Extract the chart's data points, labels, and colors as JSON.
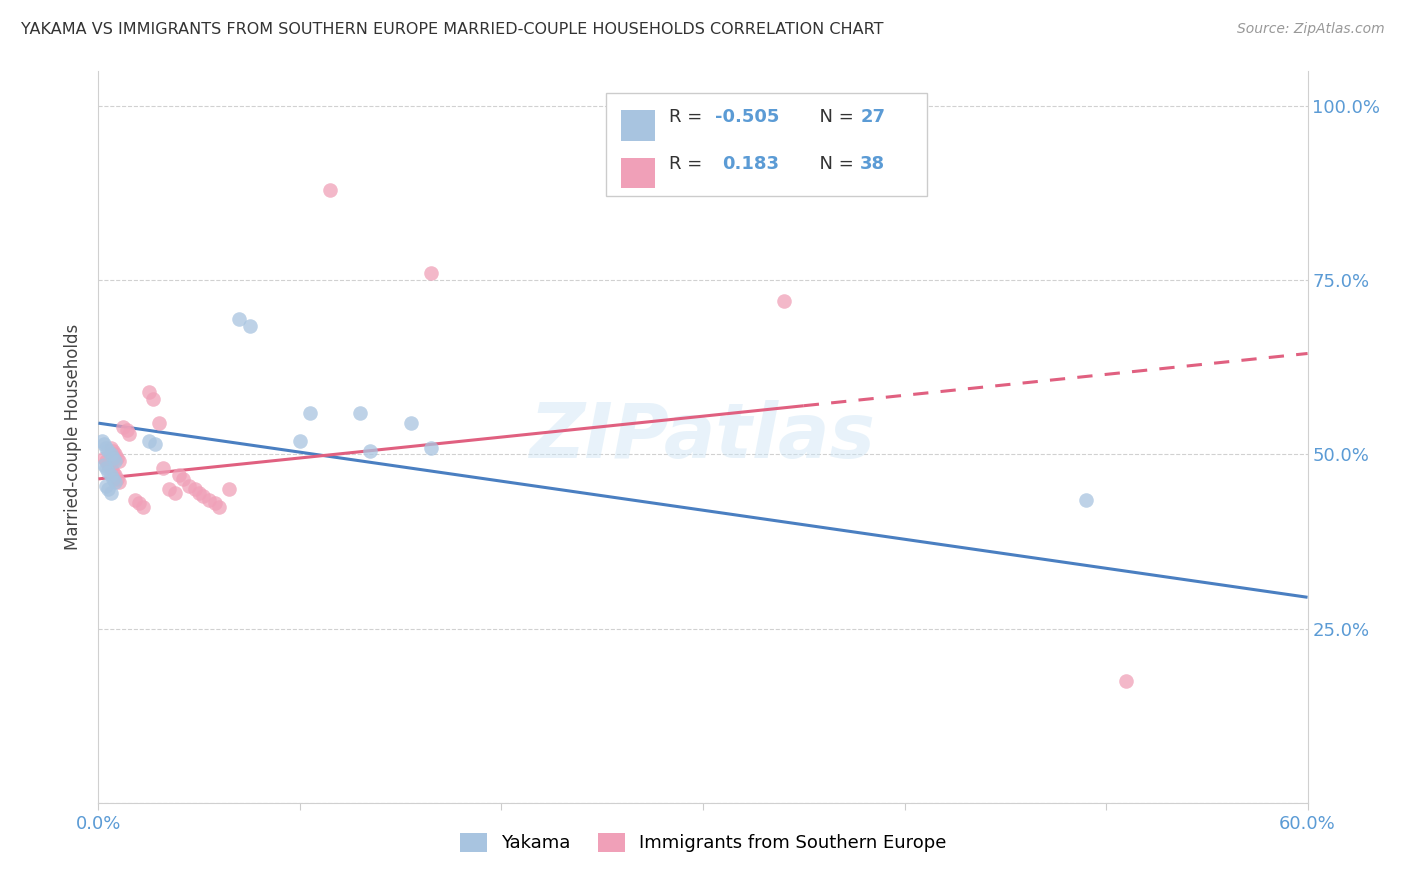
{
  "title": "YAKAMA VS IMMIGRANTS FROM SOUTHERN EUROPE MARRIED-COUPLE HOUSEHOLDS CORRELATION CHART",
  "source": "Source: ZipAtlas.com",
  "ylabel": "Married-couple Households",
  "xlim": [
    0.0,
    0.6
  ],
  "ylim": [
    0.0,
    1.05
  ],
  "color_blue": "#a8c4e0",
  "color_pink": "#f0a0b8",
  "line_color_blue": "#4a7fc1",
  "line_color_pink": "#e06080",
  "watermark": "ZIPatlas",
  "legend_label1": "Yakama",
  "legend_label2": "Immigrants from Southern Europe",
  "yakama_x": [
    0.002,
    0.003,
    0.004,
    0.005,
    0.006,
    0.007,
    0.008,
    0.003,
    0.004,
    0.005,
    0.006,
    0.007,
    0.008,
    0.004,
    0.005,
    0.006,
    0.025,
    0.028,
    0.07,
    0.075,
    0.1,
    0.105,
    0.13,
    0.135,
    0.155,
    0.165,
    0.49
  ],
  "yakama_y": [
    0.52,
    0.515,
    0.51,
    0.505,
    0.5,
    0.495,
    0.49,
    0.485,
    0.48,
    0.475,
    0.47,
    0.465,
    0.46,
    0.455,
    0.45,
    0.445,
    0.52,
    0.515,
    0.695,
    0.685,
    0.52,
    0.56,
    0.56,
    0.505,
    0.545,
    0.51,
    0.435
  ],
  "immig_x": [
    0.003,
    0.004,
    0.005,
    0.006,
    0.007,
    0.008,
    0.009,
    0.01,
    0.006,
    0.007,
    0.008,
    0.009,
    0.01,
    0.012,
    0.014,
    0.015,
    0.018,
    0.02,
    0.022,
    0.025,
    0.027,
    0.03,
    0.032,
    0.035,
    0.038,
    0.04,
    0.042,
    0.045,
    0.048,
    0.05,
    0.052,
    0.055,
    0.058,
    0.06,
    0.065,
    0.115,
    0.165,
    0.34,
    0.51
  ],
  "immig_y": [
    0.495,
    0.49,
    0.485,
    0.48,
    0.475,
    0.47,
    0.465,
    0.46,
    0.51,
    0.505,
    0.5,
    0.495,
    0.49,
    0.54,
    0.535,
    0.53,
    0.435,
    0.43,
    0.425,
    0.59,
    0.58,
    0.545,
    0.48,
    0.45,
    0.445,
    0.47,
    0.465,
    0.455,
    0.45,
    0.445,
    0.44,
    0.435,
    0.43,
    0.425,
    0.45,
    0.88,
    0.76,
    0.72,
    0.175
  ],
  "blue_line_x0": 0.0,
  "blue_line_y0": 0.545,
  "blue_line_x1": 0.6,
  "blue_line_y1": 0.295,
  "pink_line_x0": 0.0,
  "pink_line_y0": 0.465,
  "pink_line_x1": 0.6,
  "pink_line_y1": 0.645
}
